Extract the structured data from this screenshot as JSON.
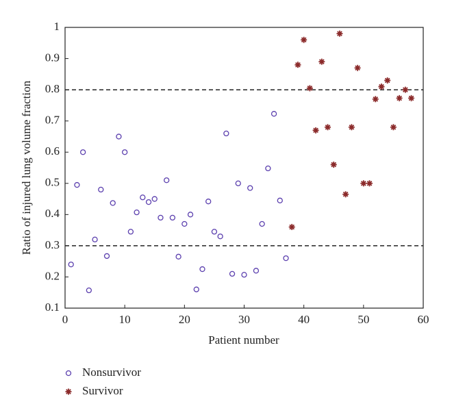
{
  "chart_data": {
    "type": "scatter",
    "xlabel": "Patient number",
    "ylabel": "Ratio of injured lung volume fraction",
    "xlim": [
      0,
      60
    ],
    "xticks": [
      0,
      10,
      20,
      30,
      40,
      50,
      60
    ],
    "ylim": [
      0.1,
      1
    ],
    "yticks": [
      0.1,
      0.2,
      0.3,
      0.4,
      0.5,
      0.6,
      0.7,
      0.8,
      0.9,
      1
    ],
    "hlines": [
      0.3,
      0.8
    ],
    "series": [
      {
        "name": "Nonsurvivor",
        "color": "#5b3fae",
        "marker": "circle",
        "x": [
          1,
          2,
          3,
          4,
          5,
          6,
          7,
          8,
          9,
          10,
          11,
          12,
          13,
          14,
          15,
          16,
          17,
          18,
          19,
          20,
          21,
          22,
          23,
          24,
          25,
          26,
          27,
          28,
          29,
          30,
          31,
          32,
          33,
          34,
          35,
          36,
          37
        ],
        "values": [
          0.24,
          0.495,
          0.6,
          0.157,
          0.32,
          0.48,
          0.267,
          0.437,
          0.65,
          0.6,
          0.345,
          0.407,
          0.455,
          0.44,
          0.45,
          0.39,
          0.51,
          0.39,
          0.265,
          0.37,
          0.4,
          0.16,
          0.225,
          0.442,
          0.345,
          0.33,
          0.66,
          0.21,
          0.5,
          0.207,
          0.485,
          0.22,
          0.37,
          0.548,
          0.723,
          0.445,
          0.26
        ]
      },
      {
        "name": "Survivor",
        "color": "#8b2a2a",
        "marker": "star",
        "x": [
          38,
          39,
          40,
          41,
          42,
          43,
          44,
          45,
          46,
          47,
          48,
          49,
          50,
          51,
          52,
          53,
          54,
          55,
          56,
          57,
          58
        ],
        "values": [
          0.36,
          0.88,
          0.96,
          0.805,
          0.67,
          0.89,
          0.68,
          0.56,
          0.98,
          0.465,
          0.68,
          0.87,
          0.5,
          0.5,
          0.77,
          0.81,
          0.83,
          0.68,
          0.773,
          0.8,
          0.773
        ]
      }
    ]
  }
}
